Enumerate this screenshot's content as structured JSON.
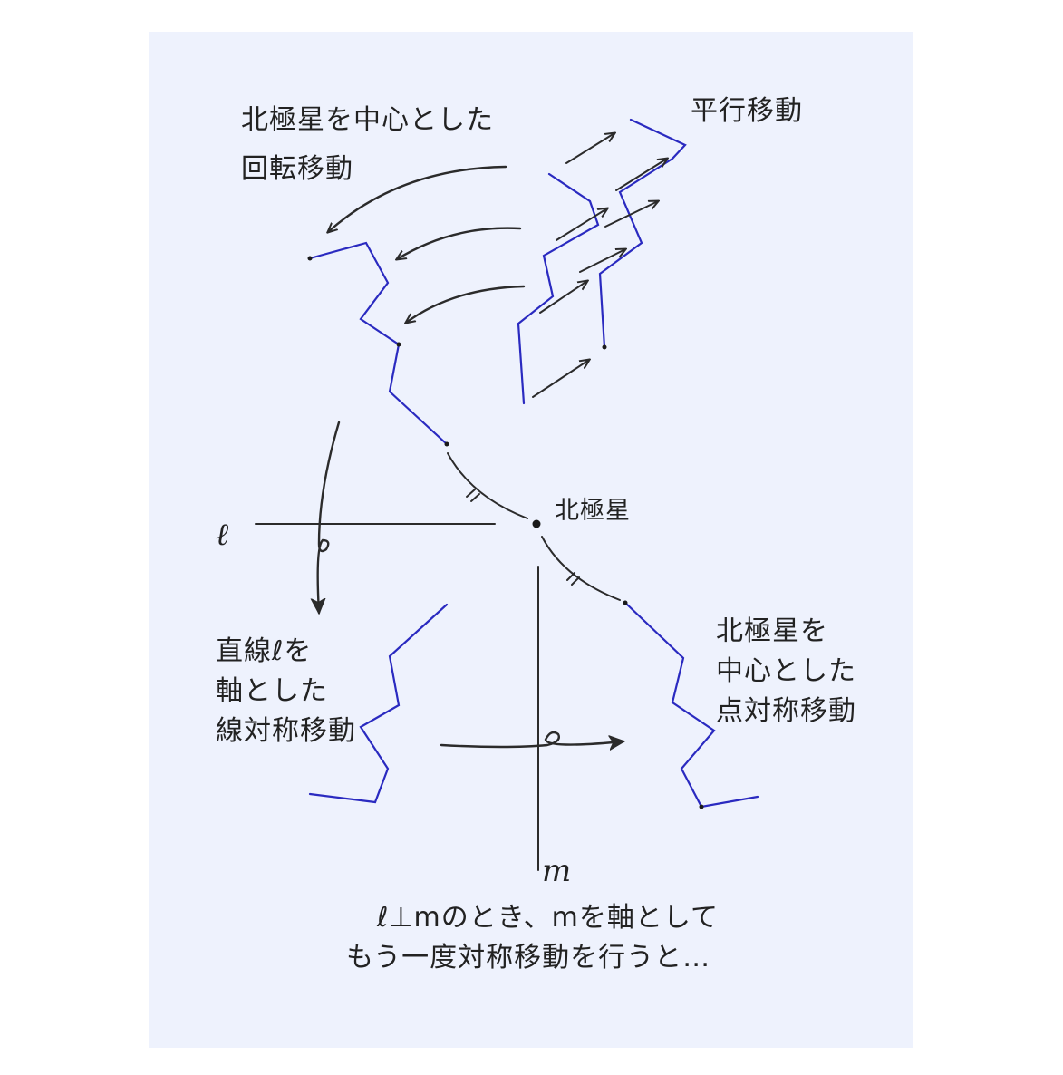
{
  "labels": {
    "rotation_line1": "北極星を中心とした",
    "rotation_line2": "回転移動",
    "translation": "平行移動",
    "polaris": "北極星",
    "line_sym_line1": "直線ℓを",
    "line_sym_line2": "軸とした",
    "line_sym_line3": "線対称移動",
    "point_sym_line1": "北極星を",
    "point_sym_line2": "中心とした",
    "point_sym_line3": "点対称移動",
    "axis_l": "ℓ",
    "axis_m": "m",
    "bottom_line1": "ℓ⊥mのとき、mを軸として",
    "bottom_line2": "もう一度対称移動を行うと…"
  },
  "colors": {
    "figure": "#2a2ac0",
    "ink": "#2b2b2b",
    "paper": "#eef2fd"
  }
}
